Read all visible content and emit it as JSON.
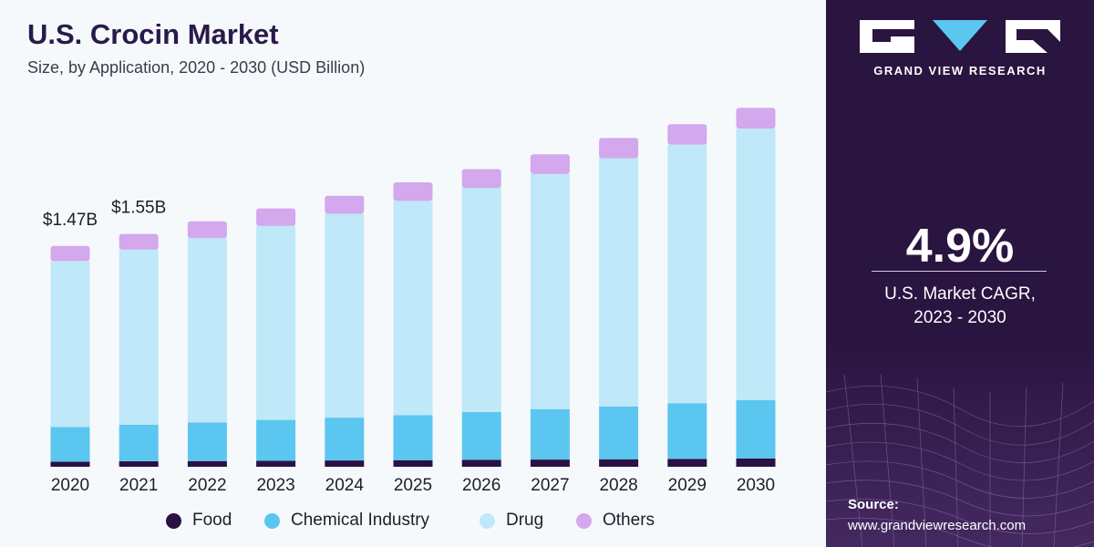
{
  "title": "U.S. Crocin Market",
  "subtitle": "Size, by Application, 2020 - 2030 (USD Billion)",
  "colors": {
    "food": "#2b1144",
    "chemical_industry": "#5bc6f0",
    "drug": "#bfe8f8",
    "others": "#d3a8ec",
    "panel_bg": "#2a1440",
    "chart_bg": "#f6f9fc"
  },
  "legend": [
    {
      "label": "Food",
      "color": "#2b1144"
    },
    {
      "label": "Chemical Industry",
      "color": "#5bc6f0"
    },
    {
      "label": "Drug",
      "color": "#bfe8f8"
    },
    {
      "label": "Others",
      "color": "#d3a8ec"
    }
  ],
  "sidebar": {
    "brand": "GRAND VIEW RESEARCH",
    "cagr_value": "4.9%",
    "cagr_label_line1": "U.S. Market CAGR,",
    "cagr_label_line2": "2023 - 2030",
    "source_title": "Source:",
    "source_url": "www.grandviewresearch.com"
  },
  "chart_data": {
    "type": "bar",
    "stacked": true,
    "title": "U.S. Crocin Market",
    "subtitle": "Size, by Application, 2020 - 2030 (USD Billion)",
    "categories": [
      "2020",
      "2021",
      "2022",
      "2023",
      "2024",
      "2025",
      "2026",
      "2027",
      "2028",
      "2029",
      "2030"
    ],
    "series": [
      {
        "name": "Food",
        "values": [
          0.034,
          0.037,
          0.038,
          0.04,
          0.042,
          0.044,
          0.046,
          0.048,
          0.05,
          0.052,
          0.055
        ]
      },
      {
        "name": "Chemical Industry",
        "values": [
          0.231,
          0.243,
          0.257,
          0.272,
          0.285,
          0.3,
          0.318,
          0.336,
          0.352,
          0.371,
          0.389
        ]
      },
      {
        "name": "Drug",
        "values": [
          1.105,
          1.165,
          1.227,
          1.291,
          1.357,
          1.426,
          1.492,
          1.565,
          1.652,
          1.722,
          1.808
        ]
      },
      {
        "name": "Others",
        "values": [
          0.1,
          0.105,
          0.112,
          0.117,
          0.12,
          0.124,
          0.126,
          0.131,
          0.135,
          0.136,
          0.138
        ]
      }
    ],
    "data_labels": [
      {
        "category": "2020",
        "text": "$1.47B"
      },
      {
        "category": "2021",
        "text": "$1.55B"
      }
    ],
    "xlabel": "",
    "ylabel": "",
    "ylim": [
      0,
      2.44
    ],
    "grid": false,
    "y_axis_visible": false,
    "legend_position": "bottom"
  }
}
